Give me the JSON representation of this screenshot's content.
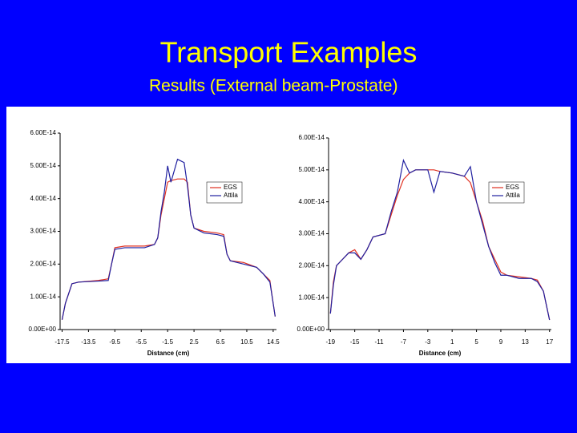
{
  "slide": {
    "title": "Transport Examples",
    "subtitle": "Results (External beam-Prostate)"
  },
  "chart_data": [
    {
      "type": "line",
      "x_label": "Distance (cm)",
      "x": [
        -17.5,
        -17,
        -16.5,
        -16,
        -15,
        -12,
        -10.5,
        -10,
        -9.5,
        -8,
        -5,
        -3.5,
        -3,
        -2.5,
        -2,
        -1.5,
        -1,
        0,
        1,
        1.5,
        2,
        2.5,
        4,
        6,
        7,
        7.5,
        8,
        10,
        12,
        13,
        14,
        14.5,
        14.8
      ],
      "series": [
        {
          "name": "EGS",
          "color": "#e03020",
          "values": [
            3e-15,
            8e-15,
            1.1e-14,
            1.4e-14,
            1.45e-14,
            1.5e-14,
            1.55e-14,
            2e-14,
            2.5e-14,
            2.55e-14,
            2.55e-14,
            2.6e-14,
            2.8e-14,
            3.5e-14,
            4e-14,
            4.5e-14,
            4.55e-14,
            4.6e-14,
            4.6e-14,
            4.5e-14,
            3.5e-14,
            3.1e-14,
            3e-14,
            2.95e-14,
            2.9e-14,
            2.3e-14,
            2.1e-14,
            2.05e-14,
            1.9e-14,
            1.7e-14,
            1.5e-14,
            8e-15,
            4e-15
          ]
        },
        {
          "name": "Attila",
          "color": "#2020a0",
          "values": [
            3e-15,
            8e-15,
            1.1e-14,
            1.4e-14,
            1.45e-14,
            1.48e-14,
            1.5e-14,
            2e-14,
            2.45e-14,
            2.5e-14,
            2.5e-14,
            2.6e-14,
            2.8e-14,
            3.6e-14,
            4.2e-14,
            5e-14,
            4.5e-14,
            5.2e-14,
            5.1e-14,
            4.4e-14,
            3.5e-14,
            3.1e-14,
            2.95e-14,
            2.9e-14,
            2.85e-14,
            2.3e-14,
            2.1e-14,
            2e-14,
            1.9e-14,
            1.7e-14,
            1.45e-14,
            8e-15,
            4e-15
          ]
        }
      ],
      "xlim": [
        -17.8,
        15
      ],
      "xticks": [
        -17.5,
        -13.5,
        -9.5,
        -5.5,
        -1.5,
        2.5,
        6.5,
        10.5,
        14.5
      ],
      "ylim": [
        0,
        6e-14
      ],
      "yticks": [
        {
          "value": 0,
          "label": "0.00E+00"
        },
        {
          "value": 1e-14,
          "label": "1.00E-14"
        },
        {
          "value": 2e-14,
          "label": "2.00E-14"
        },
        {
          "value": 3e-14,
          "label": "3.00E-14"
        },
        {
          "value": 4e-14,
          "label": "4.00E-14"
        },
        {
          "value": 5e-14,
          "label": "5.00E-14"
        },
        {
          "value": 6e-14,
          "label": "6.00E-14"
        }
      ]
    },
    {
      "type": "line",
      "x_label": "Distance (cm)",
      "x": [
        -19,
        -18.5,
        -18,
        -17,
        -16,
        -15,
        -14,
        -13,
        -12,
        -10,
        -9,
        -8,
        -7,
        -6,
        -5,
        -3,
        -2,
        -1,
        1,
        3,
        4,
        5,
        6,
        7,
        8,
        9,
        10,
        12,
        14,
        15,
        16,
        17
      ],
      "series": [
        {
          "name": "EGS",
          "color": "#e03020",
          "values": [
            5e-15,
            1.5e-14,
            2e-14,
            2.2e-14,
            2.4e-14,
            2.5e-14,
            2.2e-14,
            2.5e-14,
            2.9e-14,
            3e-14,
            3.6e-14,
            4.2e-14,
            4.7e-14,
            4.9e-14,
            5e-14,
            5e-14,
            5e-14,
            4.95e-14,
            4.9e-14,
            4.8e-14,
            4.6e-14,
            4e-14,
            3.4e-14,
            2.6e-14,
            2.2e-14,
            1.8e-14,
            1.7e-14,
            1.65e-14,
            1.6e-14,
            1.55e-14,
            1.2e-14,
            3e-15
          ]
        },
        {
          "name": "Attila",
          "color": "#2020a0",
          "values": [
            5e-15,
            1.4e-14,
            2e-14,
            2.2e-14,
            2.4e-14,
            2.4e-14,
            2.2e-14,
            2.5e-14,
            2.9e-14,
            3e-14,
            3.7e-14,
            4.3e-14,
            5.3e-14,
            4.9e-14,
            5e-14,
            5e-14,
            4.3e-14,
            4.95e-14,
            4.9e-14,
            4.8e-14,
            5.1e-14,
            4e-14,
            3.3e-14,
            2.6e-14,
            2.1e-14,
            1.7e-14,
            1.7e-14,
            1.6e-14,
            1.6e-14,
            1.5e-14,
            1.2e-14,
            3e-15
          ]
        }
      ],
      "xlim": [
        -19.3,
        17.3
      ],
      "xticks": [
        -19,
        -15,
        -11,
        -7,
        -3,
        1,
        5,
        9,
        13,
        17
      ],
      "ylim": [
        0,
        6e-14
      ],
      "yticks": [
        {
          "value": 0,
          "label": "0.00E+00"
        },
        {
          "value": 1e-14,
          "label": "1.00E-14"
        },
        {
          "value": 2e-14,
          "label": "2.00E-14"
        },
        {
          "value": 3e-14,
          "label": "3.00E-14"
        },
        {
          "value": 4e-14,
          "label": "4.00E-14"
        },
        {
          "value": 5e-14,
          "label": "5.00E-14"
        },
        {
          "value": 6e-14,
          "label": "6.00E-14"
        }
      ]
    }
  ]
}
